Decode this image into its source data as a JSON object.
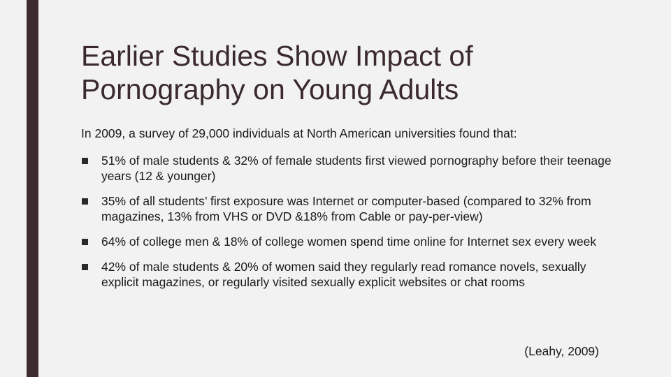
{
  "slide": {
    "title_line_1": "Earlier Studies Show Impact of",
    "title_line_2": "Pornography on Young Adults",
    "intro": "In 2009, a survey of 29,000 individuals at North American universities found that:",
    "bullets": [
      "51% of male students & 32% of female students first viewed pornography before their teenage years (12 & younger)",
      "35% of all students’ first exposure was Internet or computer-based (compared to 32% from magazines, 13% from VHS or DVD &18% from Cable or pay-per-view)",
      "64% of college men & 18% of college women spend time online for Internet sex every week",
      "42% of male students & 20% of women said they regularly read romance novels, sexually explicit magazines, or regularly visited sexually explicit websites or chat rooms"
    ],
    "citation": "(Leahy, 2009)"
  },
  "colors": {
    "accent": "#3e2b2e",
    "background": "#f2f2f2",
    "title": "#3b2a2d",
    "text": "#1a1a1a"
  },
  "icons": {
    "bullet": "square-bullet-icon"
  }
}
